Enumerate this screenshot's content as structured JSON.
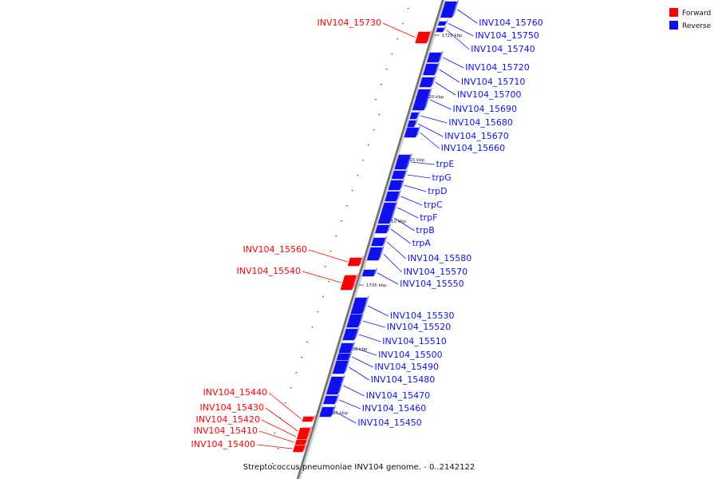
{
  "legend": {
    "forward_label": "Forward",
    "reverse_label": "Reverse",
    "forward_color": "#ff0000",
    "reverse_color": "#1010ee"
  },
  "caption": "Streptococcus pneumoniae INV104 genome. - 0..2142122",
  "ticks": [
    "1725 kbp",
    "1720 kbp",
    "1715 kbp",
    "1710 kbp",
    "1705 kbp",
    "1700 kbp",
    "1695 kbp"
  ],
  "forward_genes": [
    "INV104_15730",
    "INV104_15560",
    "INV104_15540",
    "INV104_15440",
    "INV104_15430",
    "INV104_15420",
    "INV104_15410",
    "INV104_15400"
  ],
  "reverse_genes": [
    "INV104_15760",
    "INV104_15750",
    "INV104_15740",
    "INV104_15720",
    "INV104_15710",
    "INV104_15700",
    "INV104_15690",
    "INV104_15680",
    "INV104_15670",
    "INV104_15660",
    "trpE",
    "trpG",
    "trpD",
    "trpC",
    "trpF",
    "trpB",
    "trpA",
    "INV104_15580",
    "INV104_15570",
    "INV104_15550",
    "INV104_15530",
    "INV104_15520",
    "INV104_15510",
    "INV104_15500",
    "INV104_15490",
    "INV104_15480",
    "INV104_15470",
    "INV104_15460",
    "INV104_15450"
  ]
}
